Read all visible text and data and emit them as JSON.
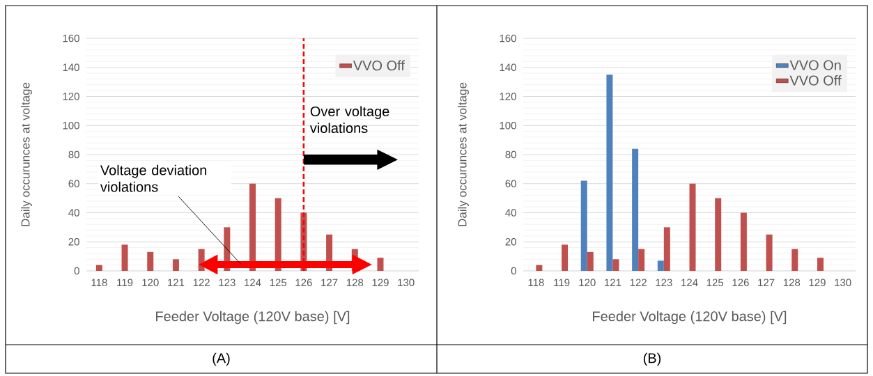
{
  "chart_data": [
    {
      "type": "bar",
      "title": "(A)",
      "xlabel": "Feeder Voltage (120V base) [V]",
      "ylabel": "Daily occurunces at voltage",
      "x": [
        118,
        119,
        120,
        121,
        122,
        123,
        124,
        125,
        126,
        127,
        128,
        129
      ],
      "series": [
        {
          "name": "VVO Off",
          "color": "#c0504d",
          "values": [
            4,
            18,
            13,
            8,
            15,
            30,
            60,
            50,
            40,
            25,
            15,
            9
          ]
        }
      ],
      "xlim": [
        117.5,
        130.5
      ],
      "xticks": [
        118,
        119,
        120,
        121,
        122,
        123,
        124,
        125,
        126,
        127,
        128,
        129,
        130
      ],
      "ylim": [
        0,
        160
      ],
      "yticks": [
        0,
        20,
        40,
        60,
        80,
        100,
        120,
        140,
        160
      ],
      "grid": "y",
      "legend": "top right",
      "ref_lines": [
        {
          "axis": "x",
          "value": 126,
          "color": "#ff0000",
          "line_style": "dashed"
        }
      ],
      "annotations": [
        "Over voltage violations",
        "Voltage deviation violations"
      ]
    },
    {
      "type": "bar",
      "title": "(B)",
      "xlabel": "Feeder Voltage (120V base) [V]",
      "ylabel": "Daily occurunces at voltage",
      "x": [
        118,
        119,
        120,
        121,
        122,
        123,
        124,
        125,
        126,
        127,
        128,
        129
      ],
      "series": [
        {
          "name": "VVO On",
          "color": "#4f81bd",
          "values": [
            null,
            null,
            62,
            135,
            84,
            7,
            null,
            null,
            null,
            null,
            null,
            null
          ]
        },
        {
          "name": "VVO Off",
          "color": "#c0504d",
          "values": [
            4,
            18,
            13,
            8,
            15,
            30,
            60,
            50,
            40,
            25,
            15,
            9
          ]
        }
      ],
      "xlim": [
        117.5,
        130.5
      ],
      "xticks": [
        118,
        119,
        120,
        121,
        122,
        123,
        124,
        125,
        126,
        127,
        128,
        129,
        130
      ],
      "ylim": [
        0,
        160
      ],
      "yticks": [
        0,
        20,
        40,
        60,
        80,
        100,
        120,
        140,
        160
      ],
      "grid": "y",
      "legend": "top right"
    }
  ]
}
